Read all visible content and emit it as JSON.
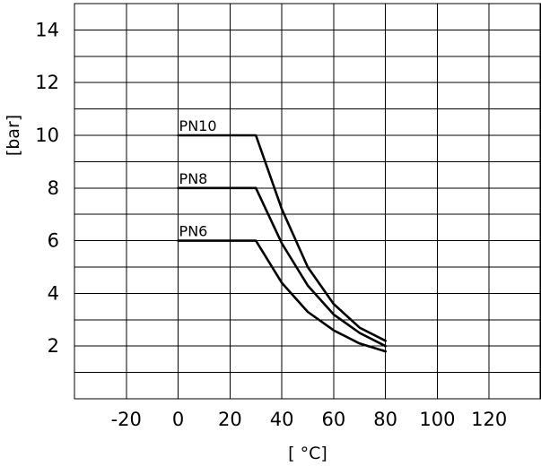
{
  "chart_data": {
    "type": "line",
    "title": "",
    "xlabel": "[ °C]",
    "ylabel": "[bar]",
    "xlim": [
      -40,
      140
    ],
    "ylim": [
      0,
      15
    ],
    "x_ticks": [
      -20,
      0,
      20,
      40,
      60,
      80,
      100,
      120
    ],
    "y_ticks": [
      2,
      4,
      6,
      8,
      10,
      12,
      14
    ],
    "grid": true,
    "series": [
      {
        "name": "PN10",
        "points": [
          [
            0,
            10
          ],
          [
            30,
            10
          ],
          [
            40,
            7.2
          ],
          [
            50,
            5.0
          ],
          [
            60,
            3.6
          ],
          [
            70,
            2.7
          ],
          [
            80,
            2.2
          ]
        ]
      },
      {
        "name": "PN8",
        "points": [
          [
            0,
            8
          ],
          [
            30,
            8
          ],
          [
            40,
            5.9
          ],
          [
            50,
            4.3
          ],
          [
            60,
            3.2
          ],
          [
            70,
            2.5
          ],
          [
            80,
            2.0
          ]
        ]
      },
      {
        "name": "PN6",
        "points": [
          [
            0,
            6
          ],
          [
            30,
            6
          ],
          [
            40,
            4.4
          ],
          [
            50,
            3.3
          ],
          [
            60,
            2.6
          ],
          [
            70,
            2.1
          ],
          [
            80,
            1.8
          ]
        ]
      }
    ]
  }
}
